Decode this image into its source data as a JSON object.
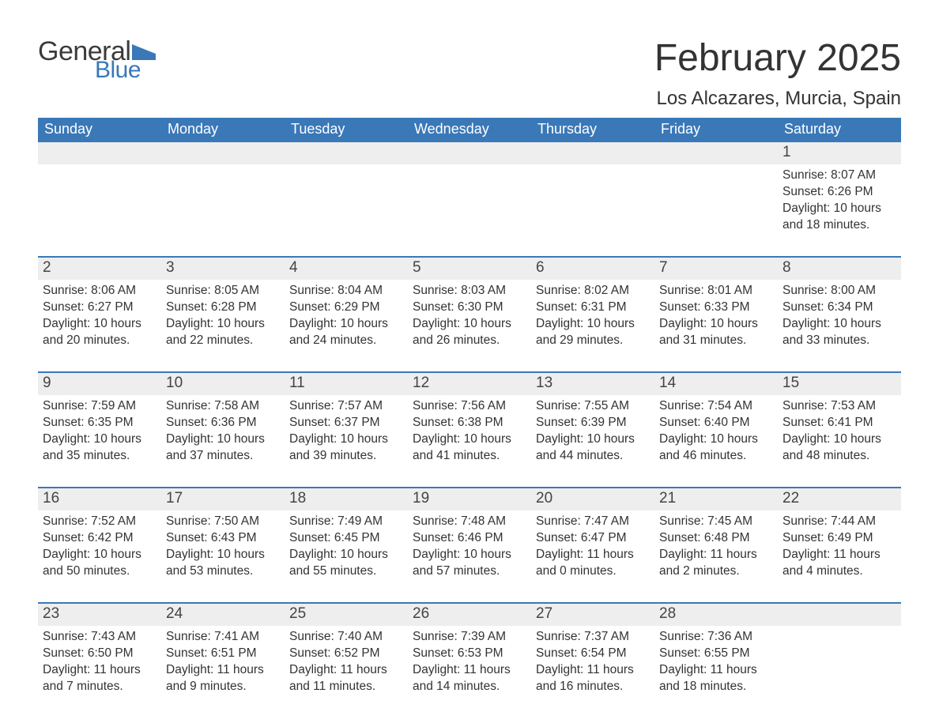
{
  "brand": {
    "word1": "General",
    "word2": "Blue",
    "flag_color": "#3a78b8"
  },
  "title": "February 2025",
  "location": "Los Alcazares, Murcia, Spain",
  "colors": {
    "header_bg": "#3a78b8",
    "header_text": "#ffffff",
    "daynum_bg": "#eeeeee",
    "text": "#333333",
    "separator": "#3a78b8",
    "page_bg": "#ffffff"
  },
  "typography": {
    "title_fontsize": 48,
    "location_fontsize": 24,
    "dow_fontsize": 18,
    "daynum_fontsize": 19,
    "detail_fontsize": 15.5,
    "font_family": "Segoe UI"
  },
  "days_of_week": [
    "Sunday",
    "Monday",
    "Tuesday",
    "Wednesday",
    "Thursday",
    "Friday",
    "Saturday"
  ],
  "weeks": [
    [
      {
        "n": "",
        "sunrise": "",
        "sunset": "",
        "day1": "",
        "day2": ""
      },
      {
        "n": "",
        "sunrise": "",
        "sunset": "",
        "day1": "",
        "day2": ""
      },
      {
        "n": "",
        "sunrise": "",
        "sunset": "",
        "day1": "",
        "day2": ""
      },
      {
        "n": "",
        "sunrise": "",
        "sunset": "",
        "day1": "",
        "day2": ""
      },
      {
        "n": "",
        "sunrise": "",
        "sunset": "",
        "day1": "",
        "day2": ""
      },
      {
        "n": "",
        "sunrise": "",
        "sunset": "",
        "day1": "",
        "day2": ""
      },
      {
        "n": "1",
        "sunrise": "Sunrise: 8:07 AM",
        "sunset": "Sunset: 6:26 PM",
        "day1": "Daylight: 10 hours",
        "day2": "and 18 minutes."
      }
    ],
    [
      {
        "n": "2",
        "sunrise": "Sunrise: 8:06 AM",
        "sunset": "Sunset: 6:27 PM",
        "day1": "Daylight: 10 hours",
        "day2": "and 20 minutes."
      },
      {
        "n": "3",
        "sunrise": "Sunrise: 8:05 AM",
        "sunset": "Sunset: 6:28 PM",
        "day1": "Daylight: 10 hours",
        "day2": "and 22 minutes."
      },
      {
        "n": "4",
        "sunrise": "Sunrise: 8:04 AM",
        "sunset": "Sunset: 6:29 PM",
        "day1": "Daylight: 10 hours",
        "day2": "and 24 minutes."
      },
      {
        "n": "5",
        "sunrise": "Sunrise: 8:03 AM",
        "sunset": "Sunset: 6:30 PM",
        "day1": "Daylight: 10 hours",
        "day2": "and 26 minutes."
      },
      {
        "n": "6",
        "sunrise": "Sunrise: 8:02 AM",
        "sunset": "Sunset: 6:31 PM",
        "day1": "Daylight: 10 hours",
        "day2": "and 29 minutes."
      },
      {
        "n": "7",
        "sunrise": "Sunrise: 8:01 AM",
        "sunset": "Sunset: 6:33 PM",
        "day1": "Daylight: 10 hours",
        "day2": "and 31 minutes."
      },
      {
        "n": "8",
        "sunrise": "Sunrise: 8:00 AM",
        "sunset": "Sunset: 6:34 PM",
        "day1": "Daylight: 10 hours",
        "day2": "and 33 minutes."
      }
    ],
    [
      {
        "n": "9",
        "sunrise": "Sunrise: 7:59 AM",
        "sunset": "Sunset: 6:35 PM",
        "day1": "Daylight: 10 hours",
        "day2": "and 35 minutes."
      },
      {
        "n": "10",
        "sunrise": "Sunrise: 7:58 AM",
        "sunset": "Sunset: 6:36 PM",
        "day1": "Daylight: 10 hours",
        "day2": "and 37 minutes."
      },
      {
        "n": "11",
        "sunrise": "Sunrise: 7:57 AM",
        "sunset": "Sunset: 6:37 PM",
        "day1": "Daylight: 10 hours",
        "day2": "and 39 minutes."
      },
      {
        "n": "12",
        "sunrise": "Sunrise: 7:56 AM",
        "sunset": "Sunset: 6:38 PM",
        "day1": "Daylight: 10 hours",
        "day2": "and 41 minutes."
      },
      {
        "n": "13",
        "sunrise": "Sunrise: 7:55 AM",
        "sunset": "Sunset: 6:39 PM",
        "day1": "Daylight: 10 hours",
        "day2": "and 44 minutes."
      },
      {
        "n": "14",
        "sunrise": "Sunrise: 7:54 AM",
        "sunset": "Sunset: 6:40 PM",
        "day1": "Daylight: 10 hours",
        "day2": "and 46 minutes."
      },
      {
        "n": "15",
        "sunrise": "Sunrise: 7:53 AM",
        "sunset": "Sunset: 6:41 PM",
        "day1": "Daylight: 10 hours",
        "day2": "and 48 minutes."
      }
    ],
    [
      {
        "n": "16",
        "sunrise": "Sunrise: 7:52 AM",
        "sunset": "Sunset: 6:42 PM",
        "day1": "Daylight: 10 hours",
        "day2": "and 50 minutes."
      },
      {
        "n": "17",
        "sunrise": "Sunrise: 7:50 AM",
        "sunset": "Sunset: 6:43 PM",
        "day1": "Daylight: 10 hours",
        "day2": "and 53 minutes."
      },
      {
        "n": "18",
        "sunrise": "Sunrise: 7:49 AM",
        "sunset": "Sunset: 6:45 PM",
        "day1": "Daylight: 10 hours",
        "day2": "and 55 minutes."
      },
      {
        "n": "19",
        "sunrise": "Sunrise: 7:48 AM",
        "sunset": "Sunset: 6:46 PM",
        "day1": "Daylight: 10 hours",
        "day2": "and 57 minutes."
      },
      {
        "n": "20",
        "sunrise": "Sunrise: 7:47 AM",
        "sunset": "Sunset: 6:47 PM",
        "day1": "Daylight: 11 hours",
        "day2": "and 0 minutes."
      },
      {
        "n": "21",
        "sunrise": "Sunrise: 7:45 AM",
        "sunset": "Sunset: 6:48 PM",
        "day1": "Daylight: 11 hours",
        "day2": "and 2 minutes."
      },
      {
        "n": "22",
        "sunrise": "Sunrise: 7:44 AM",
        "sunset": "Sunset: 6:49 PM",
        "day1": "Daylight: 11 hours",
        "day2": "and 4 minutes."
      }
    ],
    [
      {
        "n": "23",
        "sunrise": "Sunrise: 7:43 AM",
        "sunset": "Sunset: 6:50 PM",
        "day1": "Daylight: 11 hours",
        "day2": "and 7 minutes."
      },
      {
        "n": "24",
        "sunrise": "Sunrise: 7:41 AM",
        "sunset": "Sunset: 6:51 PM",
        "day1": "Daylight: 11 hours",
        "day2": "and 9 minutes."
      },
      {
        "n": "25",
        "sunrise": "Sunrise: 7:40 AM",
        "sunset": "Sunset: 6:52 PM",
        "day1": "Daylight: 11 hours",
        "day2": "and 11 minutes."
      },
      {
        "n": "26",
        "sunrise": "Sunrise: 7:39 AM",
        "sunset": "Sunset: 6:53 PM",
        "day1": "Daylight: 11 hours",
        "day2": "and 14 minutes."
      },
      {
        "n": "27",
        "sunrise": "Sunrise: 7:37 AM",
        "sunset": "Sunset: 6:54 PM",
        "day1": "Daylight: 11 hours",
        "day2": "and 16 minutes."
      },
      {
        "n": "28",
        "sunrise": "Sunrise: 7:36 AM",
        "sunset": "Sunset: 6:55 PM",
        "day1": "Daylight: 11 hours",
        "day2": "and 18 minutes."
      },
      {
        "n": "",
        "sunrise": "",
        "sunset": "",
        "day1": "",
        "day2": ""
      }
    ]
  ]
}
